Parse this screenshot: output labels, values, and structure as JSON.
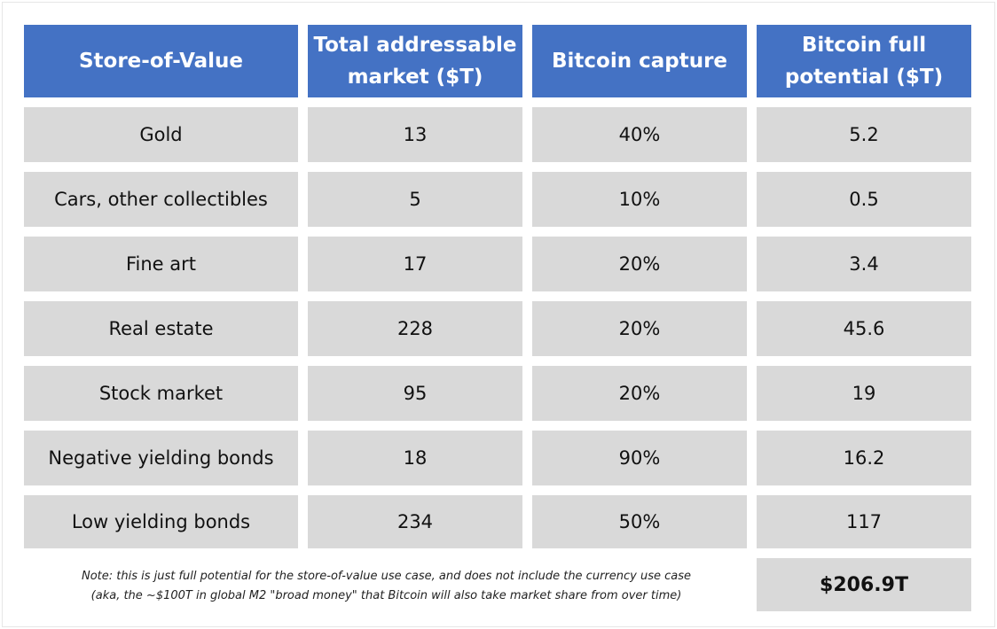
{
  "headers": [
    "Store-of-Value",
    "Total addressable market ($T)",
    "Bitcoin capture",
    "Bitcoin full potential ($T)"
  ],
  "header_lines": [
    [
      "Store-of-Value"
    ],
    [
      "Total addressable",
      "market ($T)"
    ],
    [
      "Bitcoin capture"
    ],
    [
      "Bitcoin full",
      "potential ($T)"
    ]
  ],
  "rows": [
    [
      "Gold",
      "13",
      "40%",
      "5.2"
    ],
    [
      "Cars, other collectibles",
      "5",
      "10%",
      "0.5"
    ],
    [
      "Fine art",
      "17",
      "20%",
      "3.4"
    ],
    [
      "Real estate",
      "228",
      "20%",
      "45.6"
    ],
    [
      "Stock market",
      "95",
      "20%",
      "19"
    ],
    [
      "Negative yielding bonds",
      "18",
      "90%",
      "16.2"
    ],
    [
      "Low yielding bonds",
      "234",
      "50%",
      "117"
    ]
  ],
  "note": {
    "line1": "Note: this is just full potential for the store-of-value use case, and does not include the currency use case",
    "line2": "(aka, the ~$100T in global M2 \"broad money\" that Bitcoin will also take market share from over time)"
  },
  "total": "$206.9T",
  "colors": {
    "header_bg": "#4472c4",
    "header_text": "#ffffff",
    "cell_bg": "#d9d9d9",
    "cell_text": "#111111"
  }
}
